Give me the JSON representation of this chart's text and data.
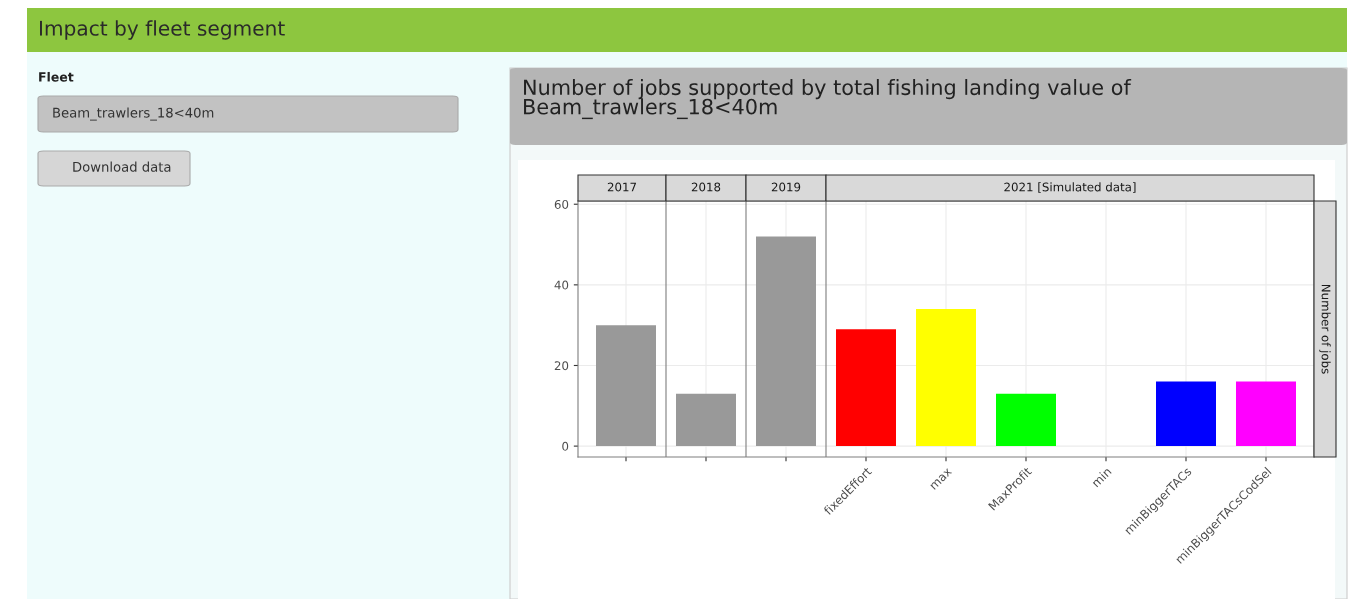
{
  "chart_data": [
    {
      "type": "other",
      "title": "Impact by fleet segment",
      "annotations": [
        "Fleet",
        "Beam_trawlers_18<40m",
        "Download data",
        "Number of jobs supported by total fishing landing value of Beam_trawlers_18<40m"
      ]
    },
    {
      "type": "bar",
      "ylabel": "Number of jobs",
      "categories": [
        null,
        null,
        null,
        "fixedEffort",
        "max",
        "MaxProfit",
        "min",
        "minBiggerTACs",
        "minBiggerTACsCodSel"
      ],
      "values": [
        30,
        13,
        52,
        29,
        34,
        13,
        null,
        16,
        16
      ],
      "colors": [
        "#999999",
        "#999999",
        "#999999",
        "#ff0000",
        "#ffff00",
        "#00ff00",
        null,
        "#0000ff",
        "#ff00ff"
      ],
      "ylim": [
        -2.7,
        60.8
      ],
      "yticks": [
        0,
        20,
        40,
        60
      ],
      "grid": true,
      "annotations": [
        "2017",
        "2018",
        "2019",
        "2021 [Simulated data]"
      ]
    }
  ]
}
